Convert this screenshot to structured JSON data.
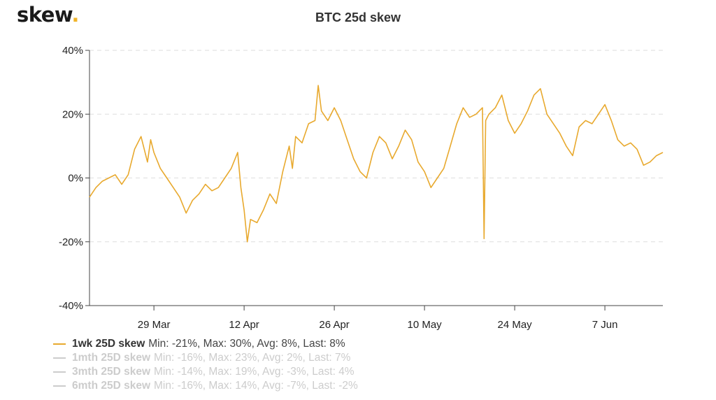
{
  "logo": {
    "text": "skew",
    "dot": "."
  },
  "chart_data": {
    "type": "line",
    "title": "BTC 25d skew",
    "xlabel": "",
    "ylabel": "",
    "ylim": [
      -40,
      40
    ],
    "xlim": [
      "2021-03-19",
      "2021-06-16"
    ],
    "yticks": [
      40,
      20,
      0,
      -20,
      -40
    ],
    "ytick_labels": [
      "40%",
      "20%",
      "0%",
      "-20%",
      "-40%"
    ],
    "xticks": [
      "2021-03-29",
      "2021-04-12",
      "2021-04-26",
      "2021-05-10",
      "2021-05-24",
      "2021-06-07"
    ],
    "xtick_labels": [
      "29 Mar",
      "12 Apr",
      "26 Apr",
      "10 May",
      "24 May",
      "7 Jun"
    ],
    "grid": "horizontal dashed",
    "legend_position": "bottom-left",
    "series": [
      {
        "name": "1wk 25D skew",
        "stats": "Min: -21%, Max: 30%, Avg: 8%, Last: 8%",
        "visible": true,
        "color": "#e8a92e",
        "points": [
          [
            "2021-03-19",
            -6
          ],
          [
            "2021-03-20",
            -3
          ],
          [
            "2021-03-21",
            -1
          ],
          [
            "2021-03-22",
            0
          ],
          [
            "2021-03-23",
            1
          ],
          [
            "2021-03-24",
            -2
          ],
          [
            "2021-03-25",
            1
          ],
          [
            "2021-03-26",
            9
          ],
          [
            "2021-03-27",
            13
          ],
          [
            "2021-03-28",
            5
          ],
          [
            "2021-03-28T12",
            12
          ],
          [
            "2021-03-29",
            8
          ],
          [
            "2021-03-30",
            3
          ],
          [
            "2021-03-31",
            0
          ],
          [
            "2021-04-01",
            -3
          ],
          [
            "2021-04-02",
            -6
          ],
          [
            "2021-04-03",
            -11
          ],
          [
            "2021-04-04",
            -7
          ],
          [
            "2021-04-05",
            -5
          ],
          [
            "2021-04-06",
            -2
          ],
          [
            "2021-04-07",
            -4
          ],
          [
            "2021-04-08",
            -3
          ],
          [
            "2021-04-09",
            0
          ],
          [
            "2021-04-10",
            3
          ],
          [
            "2021-04-11",
            8
          ],
          [
            "2021-04-11T12",
            -3
          ],
          [
            "2021-04-12",
            -10
          ],
          [
            "2021-04-12T12",
            -20
          ],
          [
            "2021-04-13",
            -13
          ],
          [
            "2021-04-14",
            -14
          ],
          [
            "2021-04-15",
            -10
          ],
          [
            "2021-04-16",
            -5
          ],
          [
            "2021-04-17",
            -8
          ],
          [
            "2021-04-18",
            2
          ],
          [
            "2021-04-19",
            10
          ],
          [
            "2021-04-19T12",
            3
          ],
          [
            "2021-04-20",
            13
          ],
          [
            "2021-04-21",
            11
          ],
          [
            "2021-04-22",
            17
          ],
          [
            "2021-04-23",
            18
          ],
          [
            "2021-04-23T12",
            29
          ],
          [
            "2021-04-24",
            21
          ],
          [
            "2021-04-25",
            18
          ],
          [
            "2021-04-26",
            22
          ],
          [
            "2021-04-27",
            18
          ],
          [
            "2021-04-28",
            12
          ],
          [
            "2021-04-29",
            6
          ],
          [
            "2021-04-30",
            2
          ],
          [
            "2021-05-01",
            0
          ],
          [
            "2021-05-02",
            8
          ],
          [
            "2021-05-03",
            13
          ],
          [
            "2021-05-04",
            11
          ],
          [
            "2021-05-05",
            6
          ],
          [
            "2021-05-06",
            10
          ],
          [
            "2021-05-07",
            15
          ],
          [
            "2021-05-08",
            12
          ],
          [
            "2021-05-09",
            5
          ],
          [
            "2021-05-10",
            2
          ],
          [
            "2021-05-11",
            -3
          ],
          [
            "2021-05-12",
            0
          ],
          [
            "2021-05-13",
            3
          ],
          [
            "2021-05-14",
            10
          ],
          [
            "2021-05-15",
            17
          ],
          [
            "2021-05-16",
            22
          ],
          [
            "2021-05-17",
            19
          ],
          [
            "2021-05-18",
            20
          ],
          [
            "2021-05-19",
            22
          ],
          [
            "2021-05-19T06",
            -19
          ],
          [
            "2021-05-19T12",
            18
          ],
          [
            "2021-05-20",
            20
          ],
          [
            "2021-05-21",
            22
          ],
          [
            "2021-05-22",
            26
          ],
          [
            "2021-05-23",
            18
          ],
          [
            "2021-05-24",
            14
          ],
          [
            "2021-05-25",
            17
          ],
          [
            "2021-05-26",
            21
          ],
          [
            "2021-05-27",
            26
          ],
          [
            "2021-05-28",
            28
          ],
          [
            "2021-05-29",
            20
          ],
          [
            "2021-05-30",
            17
          ],
          [
            "2021-05-31",
            14
          ],
          [
            "2021-06-01",
            10
          ],
          [
            "2021-06-02",
            7
          ],
          [
            "2021-06-03",
            16
          ],
          [
            "2021-06-04",
            18
          ],
          [
            "2021-06-05",
            17
          ],
          [
            "2021-06-06",
            20
          ],
          [
            "2021-06-07",
            23
          ],
          [
            "2021-06-08",
            18
          ],
          [
            "2021-06-09",
            12
          ],
          [
            "2021-06-10",
            10
          ],
          [
            "2021-06-11",
            11
          ],
          [
            "2021-06-12",
            9
          ],
          [
            "2021-06-13",
            4
          ],
          [
            "2021-06-14",
            5
          ],
          [
            "2021-06-15",
            7
          ],
          [
            "2021-06-16",
            8
          ]
        ]
      },
      {
        "name": "1mth 25D skew",
        "stats": "Min: -16%, Max: 23%, Avg: 2%, Last: 7%",
        "visible": false,
        "color": "#cccccc"
      },
      {
        "name": "3mth 25D skew",
        "stats": "Min: -14%, Max: 19%, Avg: -3%, Last: 4%",
        "visible": false,
        "color": "#cccccc"
      },
      {
        "name": "6mth 25D skew",
        "stats": "Min: -16%, Max: 14%, Avg: -7%, Last: -2%",
        "visible": false,
        "color": "#cccccc"
      }
    ]
  },
  "colors": {
    "line": "#e8a92e",
    "hidden": "#cccccc",
    "grid": "#dddddd",
    "axis": "#444444",
    "text": "#222222"
  }
}
